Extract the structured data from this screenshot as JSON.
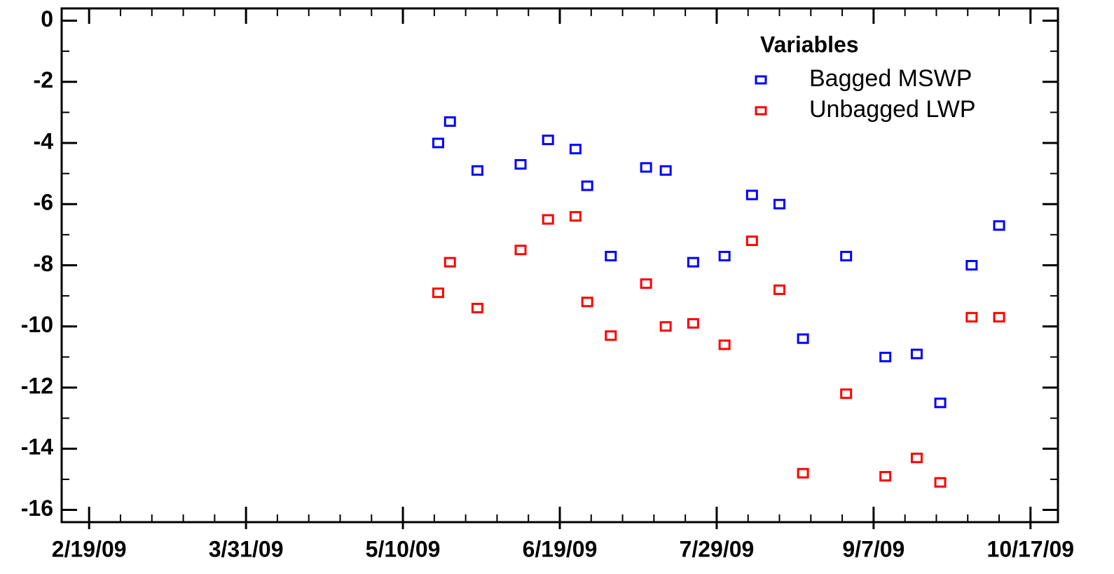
{
  "chart_data": {
    "type": "scatter",
    "x": [
      "2009-05-19",
      "2009-05-22",
      "2009-05-29",
      "2009-06-09",
      "2009-06-16",
      "2009-06-23",
      "2009-06-26",
      "2009-07-02",
      "2009-07-11",
      "2009-07-16",
      "2009-07-23",
      "2009-07-31",
      "2009-08-07",
      "2009-08-14",
      "2009-08-20",
      "2009-08-31",
      "2009-09-10",
      "2009-09-18",
      "2009-09-24",
      "2009-10-02",
      "2009-10-09"
    ],
    "series": [
      {
        "name": "Bagged MSWP",
        "color": "#0000ff",
        "values": [
          -4.0,
          -3.3,
          -4.9,
          -4.7,
          -3.9,
          -4.2,
          -5.4,
          -7.7,
          -4.8,
          -4.9,
          -7.9,
          -7.7,
          -5.7,
          -6.0,
          -10.4,
          -7.7,
          -11.0,
          -10.9,
          -12.5,
          -8.0,
          -6.7
        ]
      },
      {
        "name": "Unbagged LWP",
        "color": "#ff0000",
        "values": [
          -8.9,
          -7.9,
          -9.4,
          -7.5,
          -6.5,
          -6.4,
          -9.2,
          -10.3,
          -8.6,
          -10.0,
          -9.9,
          -10.6,
          -7.2,
          -8.8,
          -14.8,
          -12.2,
          -14.9,
          -14.3,
          -15.1,
          -9.7,
          -9.7
        ]
      }
    ],
    "legend_title": "Variables",
    "legend": "upper right",
    "xlim": [
      "2009-02-12",
      "2009-10-24"
    ],
    "xticks": [
      {
        "value": "2009-02-19",
        "label": "2/19/09"
      },
      {
        "value": "2009-03-31",
        "label": "3/31/09"
      },
      {
        "value": "2009-05-10",
        "label": "5/10/09"
      },
      {
        "value": "2009-06-19",
        "label": "6/19/09"
      },
      {
        "value": "2009-07-29",
        "label": "7/29/09"
      },
      {
        "value": "2009-09-07",
        "label": "9/7/09"
      },
      {
        "value": "2009-10-17",
        "label": "10/17/09"
      }
    ],
    "ylim": [
      -16.4,
      0.4
    ],
    "yticks": [
      0,
      -2,
      -4,
      -6,
      -8,
      -10,
      -12,
      -14,
      -16
    ]
  }
}
